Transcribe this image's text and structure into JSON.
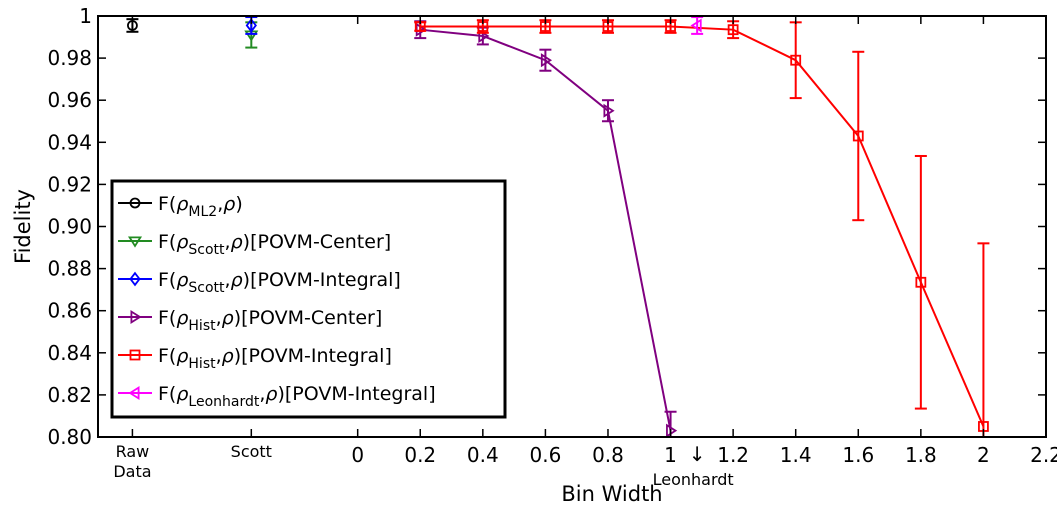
{
  "chart_data": {
    "type": "line",
    "xlabel": "Bin Width",
    "ylabel": "Fidelity",
    "xlim": [
      -0.83,
      2.2
    ],
    "ylim": [
      0.8,
      1.0
    ],
    "x_ticks": [
      0,
      0.2,
      0.4,
      0.6,
      0.8,
      1,
      1.2,
      1.4,
      1.6,
      1.8,
      2,
      2.2
    ],
    "x_tick_labels": [
      "0",
      "0.2",
      "0.4",
      "0.6",
      "0.8",
      "1",
      "1.2",
      "1.4",
      "1.6",
      "1.8",
      "2",
      "2.2"
    ],
    "y_ticks": [
      0.8,
      0.82,
      0.84,
      0.86,
      0.88,
      0.9,
      0.92,
      0.94,
      0.96,
      0.98,
      1.0
    ],
    "y_tick_labels": [
      "0.80",
      "0.82",
      "0.84",
      "0.86",
      "0.88",
      "0.90",
      "0.92",
      "0.94",
      "0.96",
      "0.98",
      "1"
    ],
    "category_ticks": [
      {
        "x": -0.72,
        "label_lines": [
          "Raw",
          "Data"
        ]
      },
      {
        "x": -0.34,
        "label_lines": [
          "Scott"
        ]
      }
    ],
    "annotation": {
      "x": 1.085,
      "arrow": "↓",
      "text": "Leonhardt"
    },
    "legend_position": "lower-left",
    "series": [
      {
        "name": "F(ρML2,ρ)",
        "name_main": "F(",
        "name_sub": "ML2",
        "name_tail": ",ρ)",
        "color": "#000000",
        "marker": "circle",
        "line": false,
        "points": [
          {
            "x": -0.72,
            "y": 0.9955,
            "err": 0.003
          }
        ]
      },
      {
        "name": "F(ρScott,ρ)[POVM-Center]",
        "name_main": "F(",
        "name_sub": "Scott",
        "name_tail": ",ρ)[POVM-Center]",
        "color": "#228b22",
        "marker": "triangle-down",
        "line": false,
        "points": [
          {
            "x": -0.34,
            "y": 0.991,
            "err": 0.006
          }
        ]
      },
      {
        "name": "F(ρScott,ρ)[POVM-Integral]",
        "name_main": "F(",
        "name_sub": "Scott",
        "name_tail": ",ρ)[POVM-Integral]",
        "color": "#0000ff",
        "marker": "diamond",
        "line": false,
        "points": [
          {
            "x": -0.34,
            "y": 0.9955,
            "err": 0.004
          }
        ]
      },
      {
        "name": "F(ρHist,ρ)[POVM-Center]",
        "name_main": "F(",
        "name_sub": "Hist",
        "name_tail": ",ρ)[POVM-Center]",
        "color": "#800080",
        "marker": "triangle-right",
        "line": true,
        "points": [
          {
            "x": 0.2,
            "y": 0.9935,
            "err": 0.004
          },
          {
            "x": 0.4,
            "y": 0.9905,
            "err": 0.004
          },
          {
            "x": 0.6,
            "y": 0.979,
            "err": 0.005
          },
          {
            "x": 0.8,
            "y": 0.955,
            "err": 0.005
          },
          {
            "x": 1.0,
            "y": 0.803,
            "err": 0.009
          }
        ]
      },
      {
        "name": "F(ρHist,ρ)[POVM-Integral]",
        "name_main": "F(",
        "name_sub": "Hist",
        "name_tail": ",ρ)[POVM-Integral]",
        "color": "#ff0000",
        "marker": "square",
        "line": true,
        "points": [
          {
            "x": 0.2,
            "y": 0.995,
            "err": 0.002
          },
          {
            "x": 0.4,
            "y": 0.995,
            "err": 0.003
          },
          {
            "x": 0.6,
            "y": 0.995,
            "err": 0.003
          },
          {
            "x": 0.8,
            "y": 0.995,
            "err": 0.003
          },
          {
            "x": 1.0,
            "y": 0.995,
            "err": 0.003
          },
          {
            "x": 1.2,
            "y": 0.9935,
            "err": 0.004
          },
          {
            "x": 1.4,
            "y": 0.979,
            "err": 0.018
          },
          {
            "x": 1.6,
            "y": 0.943,
            "err": 0.04
          },
          {
            "x": 1.8,
            "y": 0.8735,
            "err": 0.06
          },
          {
            "x": 2.0,
            "y": 0.805,
            "err": 0.087
          }
        ]
      },
      {
        "name": "F(ρLeonhardt,ρ)[POVM-Integral]",
        "name_main": "F(",
        "name_sub": "Leonhardt",
        "name_tail": ",ρ)[POVM-Integral]",
        "color": "#ff00ff",
        "marker": "triangle-left",
        "line": false,
        "points": [
          {
            "x": 1.085,
            "y": 0.9955,
            "err": 0.004
          }
        ]
      }
    ]
  }
}
